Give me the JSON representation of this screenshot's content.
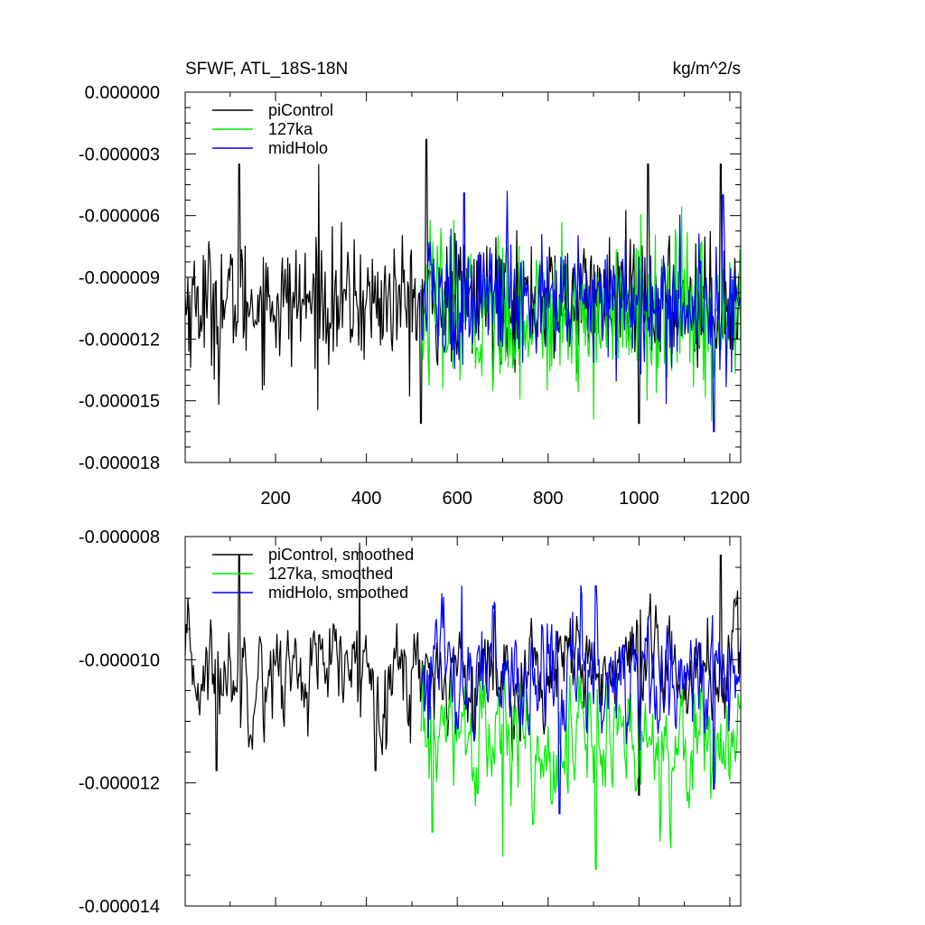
{
  "chart_data": [
    {
      "type": "line",
      "title": "SFWF, ATL_18S-18N",
      "units": "kg/m^2/s",
      "x": {
        "range": [
          1,
          1224
        ],
        "ticks": [
          200,
          400,
          600,
          800,
          1000,
          1200
        ],
        "tick_labels": [
          "200",
          "400",
          "600",
          "800",
          "1000",
          "1200"
        ]
      },
      "y": {
        "range": [
          -1.8e-05,
          0.0
        ],
        "ticks": [
          0.0,
          -3e-06,
          -6e-06,
          -9e-06,
          -1.2e-05,
          -1.5e-05,
          -1.8e-05
        ],
        "tick_labels": [
          "0.000000",
          "-0.000003",
          "-0.000006",
          "-0.000009",
          "-0.000012",
          "-0.000015",
          "-0.000018"
        ]
      },
      "legend": {
        "placement": "top-left"
      },
      "series": [
        {
          "name": "piControl",
          "color": "#000000",
          "x_range": [
            1,
            1224
          ],
          "mean": -1.02e-05,
          "std": 1.5e-06,
          "peaks": [
            [
              120,
              -3.5e-06
            ],
            [
              295,
              -3.5e-06
            ],
            [
              532,
              -2.3e-06
            ],
            [
              1020,
              -3.5e-06
            ],
            [
              1180,
              -3.5e-06
            ]
          ],
          "troughs": [
            [
              75,
              -1.52e-05
            ],
            [
              520,
              -1.61e-05
            ],
            [
              1000,
              -1.61e-05
            ]
          ]
        },
        {
          "name": "127ka",
          "color": "#00ee00",
          "x_range": [
            520,
            1224
          ],
          "mean": -1.08e-05,
          "std": 1.8e-06,
          "peaks": [
            [
              540,
              -6.2e-06
            ],
            [
              830,
              -6.3e-06
            ]
          ],
          "troughs": [
            [
              900,
              -1.59e-05
            ],
            [
              1160,
              -1.6e-05
            ]
          ]
        },
        {
          "name": "midHolo",
          "color": "#0000ff",
          "x_range": [
            520,
            1224
          ],
          "mean": -1.02e-05,
          "std": 1.6e-06,
          "peaks": [
            [
              615,
              -4.9e-06
            ],
            [
              710,
              -4.8e-06
            ],
            [
              1185,
              -5e-06
            ]
          ],
          "troughs": [
            [
              1165,
              -1.65e-05
            ]
          ]
        }
      ]
    },
    {
      "type": "line",
      "x": {
        "range": [
          1,
          1224
        ],
        "ticks": [
          200,
          400,
          600,
          800,
          1000,
          1200
        ],
        "tick_labels": []
      },
      "y": {
        "range": [
          -1.4e-05,
          -8e-06
        ],
        "ticks": [
          -8e-06,
          -1e-05,
          -1.2e-05,
          -1.4e-05
        ],
        "tick_labels": [
          "-0.000008",
          "-0.000010",
          "-0.000012",
          "-0.000014"
        ]
      },
      "legend": {
        "placement": "top-left"
      },
      "series": [
        {
          "name": "piControl, smoothed",
          "color": "#000000",
          "x_range": [
            1,
            1224
          ],
          "mean": -1.02e-05,
          "std": 5e-07,
          "peaks": [
            [
              120,
              -8.3e-06
            ],
            [
              385,
              -8.1e-06
            ],
            [
              1180,
              -8.3e-06
            ]
          ],
          "troughs": [
            [
              70,
              -1.18e-05
            ],
            [
              420,
              -1.18e-05
            ],
            [
              1000,
              -1.22e-05
            ]
          ]
        },
        {
          "name": "127ka, smoothed",
          "color": "#00ee00",
          "x_range": [
            520,
            1224
          ],
          "mean": -1.13e-05,
          "std": 6e-07,
          "peaks": [
            [
              545,
              -9.4e-06
            ]
          ],
          "troughs": [
            [
              545,
              -1.28e-05
            ],
            [
              700,
              -1.32e-05
            ],
            [
              905,
              -1.34e-05
            ]
          ]
        },
        {
          "name": "midHolo, smoothed",
          "color": "#0000ff",
          "x_range": [
            520,
            1224
          ],
          "mean": -1.03e-05,
          "std": 6e-07,
          "peaks": [
            [
              610,
              -8.8e-06
            ],
            [
              905,
              -8.8e-06
            ]
          ],
          "troughs": [
            [
              825,
              -1.25e-05
            ],
            [
              1165,
              -1.21e-05
            ]
          ]
        }
      ]
    }
  ]
}
